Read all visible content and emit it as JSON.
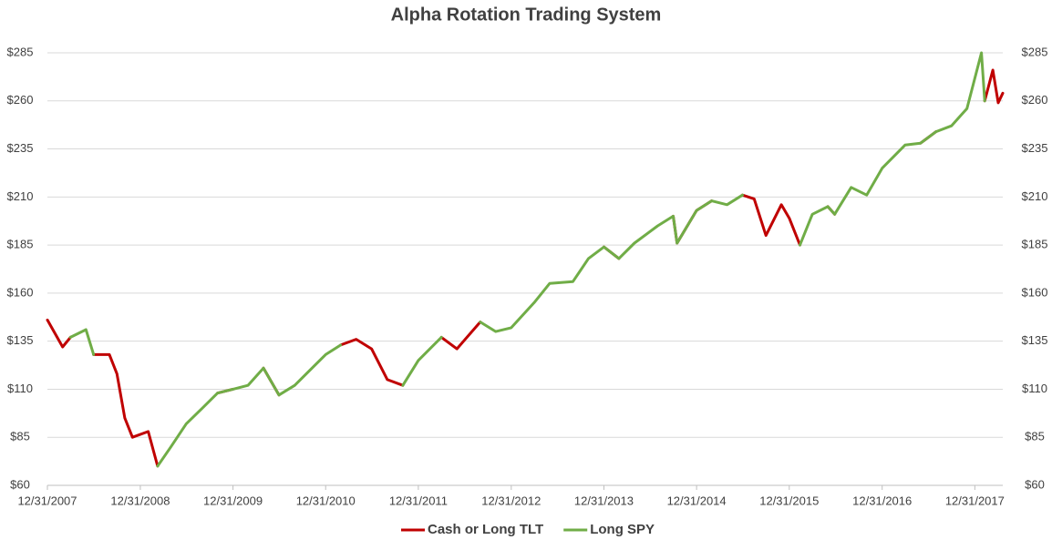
{
  "chart_data": {
    "type": "line",
    "title": "Alpha Rotation Trading System",
    "x": [
      "12/31/2007",
      "02/29/2008",
      "03/31/2008",
      "05/31/2008",
      "06/30/2008",
      "08/31/2008",
      "09/30/2008",
      "10/31/2008",
      "11/30/2008",
      "01/31/2009",
      "03/09/2009",
      "04/30/2009",
      "06/30/2009",
      "08/31/2009",
      "10/31/2009",
      "12/31/2009",
      "02/28/2010",
      "04/30/2010",
      "06/30/2010",
      "08/31/2010",
      "10/31/2010",
      "12/31/2010",
      "02/28/2011",
      "04/30/2011",
      "06/30/2011",
      "08/31/2011",
      "10/31/2011",
      "12/31/2011",
      "03/31/2012",
      "05/31/2012",
      "08/31/2012",
      "10/31/2012",
      "12/31/2012",
      "03/31/2013",
      "05/31/2013",
      "08/31/2013",
      "10/31/2013",
      "12/31/2013",
      "02/28/2014",
      "04/30/2014",
      "07/31/2014",
      "09/30/2014",
      "10/15/2014",
      "12/31/2014",
      "02/28/2015",
      "04/30/2015",
      "06/30/2015",
      "08/15/2015",
      "09/30/2015",
      "11/30/2015",
      "12/31/2015",
      "02/11/2016",
      "03/31/2016",
      "05/31/2016",
      "06/27/2016",
      "08/31/2016",
      "10/31/2016",
      "12/31/2016",
      "03/31/2017",
      "05/31/2017",
      "07/31/2017",
      "09/30/2017",
      "11/30/2017",
      "01/26/2018",
      "02/08/2018",
      "03/12/2018",
      "04/02/2018",
      "04/20/2018"
    ],
    "series": [
      {
        "name": "Cash or Long TLT",
        "color": "#c00000",
        "values": [
          146,
          132,
          137,
          null,
          128,
          128,
          118,
          95,
          85,
          88,
          70,
          null,
          null,
          null,
          108,
          110,
          null,
          121,
          107,
          null,
          null,
          null,
          133,
          136,
          131,
          115,
          112,
          null,
          137,
          131,
          145,
          null,
          null,
          null,
          null,
          null,
          null,
          184,
          178,
          null,
          null,
          200,
          186,
          203,
          208,
          null,
          211,
          209,
          190,
          206,
          199,
          185,
          null,
          205,
          201,
          null,
          null,
          null,
          null,
          238,
          244,
          null,
          null,
          null,
          260,
          276,
          259,
          264
        ]
      },
      {
        "name": "Long SPY",
        "color": "#70ad47",
        "values": [
          null,
          null,
          137,
          141,
          128,
          null,
          null,
          null,
          null,
          null,
          70,
          80,
          92,
          100,
          108,
          110,
          112,
          121,
          107,
          112,
          120,
          128,
          133,
          null,
          null,
          null,
          112,
          125,
          137,
          null,
          145,
          140,
          142,
          155,
          165,
          166,
          178,
          184,
          178,
          186,
          195,
          200,
          186,
          203,
          208,
          206,
          211,
          null,
          null,
          null,
          null,
          185,
          201,
          205,
          201,
          215,
          211,
          225,
          237,
          238,
          244,
          247,
          256,
          285,
          260,
          null,
          null,
          null
        ]
      }
    ],
    "xlim": [
      "12/31/2007",
      "04/20/2018"
    ],
    "xticks": [
      "12/31/2007",
      "12/31/2008",
      "12/31/2009",
      "12/31/2010",
      "12/31/2011",
      "12/31/2012",
      "12/31/2013",
      "12/31/2014",
      "12/31/2015",
      "12/31/2016",
      "12/31/2017"
    ],
    "ylim": [
      60,
      285
    ],
    "yticks": [
      {
        "value": 60,
        "label": "$60"
      },
      {
        "value": 85,
        "label": "$85"
      },
      {
        "value": 110,
        "label": "$110"
      },
      {
        "value": 135,
        "label": "$135"
      },
      {
        "value": 160,
        "label": "$160"
      },
      {
        "value": 185,
        "label": "$185"
      },
      {
        "value": 210,
        "label": "$210"
      },
      {
        "value": 235,
        "label": "$235"
      },
      {
        "value": 260,
        "label": "$260"
      },
      {
        "value": 285,
        "label": "$285"
      }
    ],
    "y2lim": [
      60,
      285
    ],
    "y2ticks": [
      {
        "value": 60,
        "label": "$60"
      },
      {
        "value": 85,
        "label": "$85"
      },
      {
        "value": 110,
        "label": "$110"
      },
      {
        "value": 135,
        "label": "$135"
      },
      {
        "value": 160,
        "label": "$160"
      },
      {
        "value": 185,
        "label": "$185"
      },
      {
        "value": 210,
        "label": "$210"
      },
      {
        "value": 235,
        "label": "$235"
      },
      {
        "value": 260,
        "label": "$260"
      },
      {
        "value": 285,
        "label": "$285"
      }
    ],
    "grid": true,
    "legend": "bottom"
  }
}
